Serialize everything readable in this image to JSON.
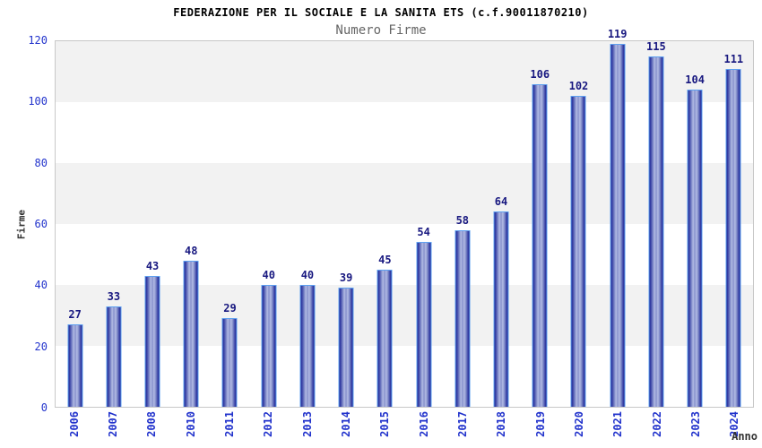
{
  "chart_data": {
    "type": "bar",
    "title": "FEDERAZIONE PER IL SOCIALE E LA SANITA ETS (c.f.90011870210)",
    "subtitle": "Numero Firme",
    "xlabel": "Anno",
    "ylabel": "Firme",
    "categories": [
      "2006",
      "2007",
      "2008",
      "2010",
      "2011",
      "2012",
      "2013",
      "2014",
      "2015",
      "2016",
      "2017",
      "2018",
      "2019",
      "2020",
      "2021",
      "2022",
      "2023",
      "2024"
    ],
    "values": [
      27,
      33,
      43,
      48,
      29,
      40,
      40,
      39,
      45,
      54,
      58,
      64,
      106,
      102,
      119,
      115,
      104,
      111
    ],
    "ylim": [
      0,
      120
    ],
    "yticks": [
      0,
      20,
      40,
      60,
      80,
      100,
      120
    ],
    "grid": "alternating horizontal bands, gray on top band",
    "legend": "none",
    "colors": {
      "bar_edge_border": "#5ea0f0",
      "bar_gradient_dark": "#1f2794",
      "bar_gradient_light": "#b2bbe4",
      "tick_labels": "#2233cc",
      "value_labels": "#181880",
      "axis_names": "#333333",
      "title": "#000000",
      "subtitle": "#666666",
      "band_gray": "#f2f2f2",
      "band_white": "#ffffff",
      "plot_border": "#c8c8c8"
    }
  }
}
